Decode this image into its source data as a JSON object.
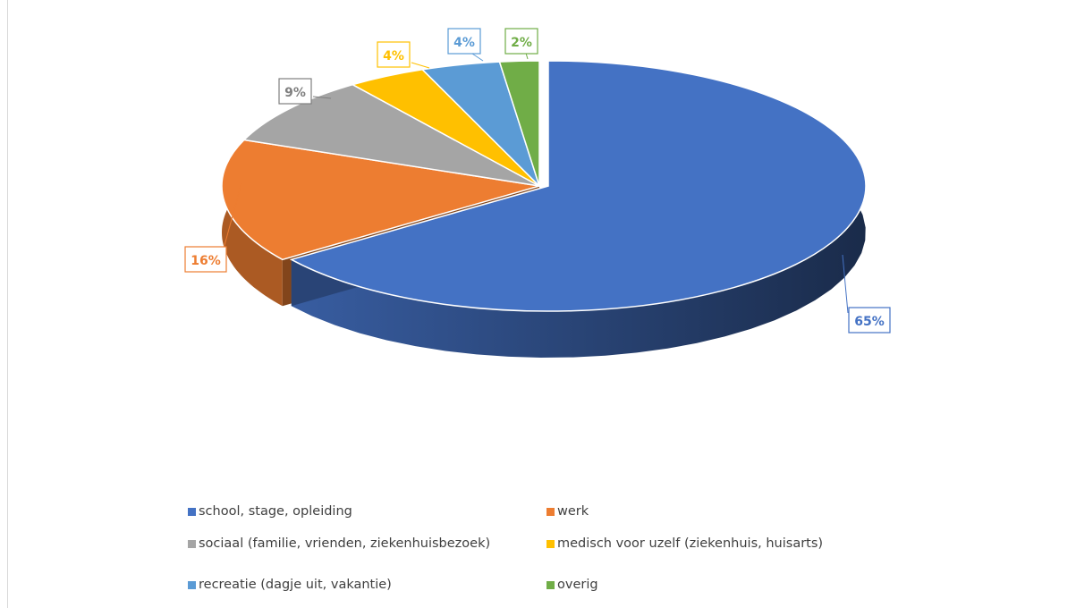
{
  "chart_data": {
    "type": "pie",
    "style": "3d-exploded",
    "title": "",
    "legend_position": "bottom",
    "slices": [
      {
        "label": "school, stage, opleiding",
        "value": 65,
        "display": "65%",
        "color": "#4472C4",
        "label_color": "#4472C4"
      },
      {
        "label": "werk",
        "value": 16,
        "display": "16%",
        "color": "#ED7D31",
        "label_color": "#ED7D31"
      },
      {
        "label": "sociaal (familie, vrienden, ziekenhuisbezoek)",
        "value": 9,
        "display": "9%",
        "color": "#A5A5A5",
        "label_color": "#7F7F7F"
      },
      {
        "label": "medisch voor uzelf (ziekenhuis, huisarts)",
        "value": 4,
        "display": "4%",
        "color": "#FFC000",
        "label_color": "#FFC000"
      },
      {
        "label": "recreatie (dagje uit, vakantie)",
        "value": 4,
        "display": "4%",
        "color": "#5B9BD5",
        "label_color": "#5B9BD5"
      },
      {
        "label": "overig",
        "value": 2,
        "display": "2%",
        "color": "#70AD47",
        "label_color": "#70AD47"
      }
    ]
  }
}
